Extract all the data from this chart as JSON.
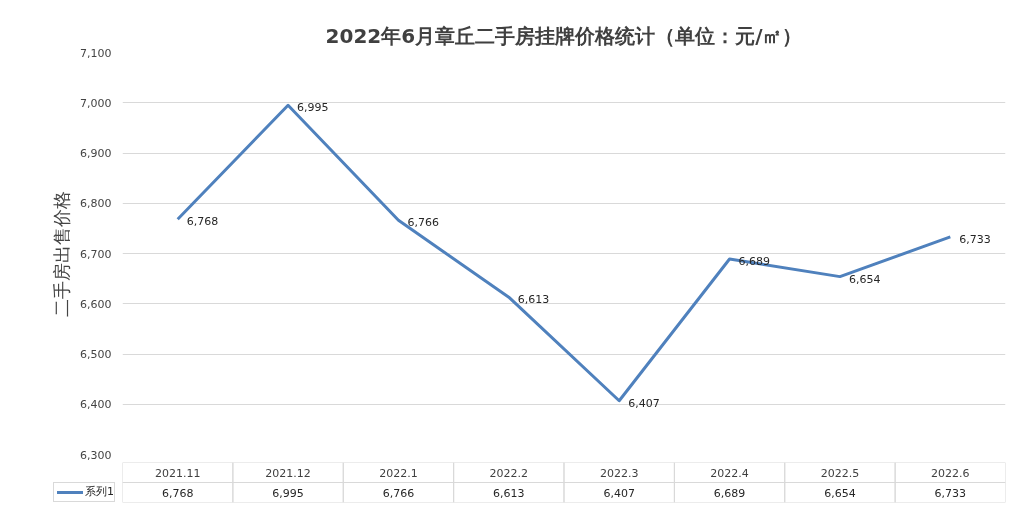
{
  "chart_data": {
    "type": "line",
    "title": "2022年6月章丘二手房挂牌价格统计（单位：元/㎡）",
    "ylabel": "二手房出售价格",
    "categories": [
      "2021.11",
      "2021.12",
      "2022.1",
      "2022.2",
      "2022.3",
      "2022.4",
      "2022.5",
      "2022.6"
    ],
    "series": [
      {
        "name": "系列1",
        "color": "#4f81bd",
        "values": [
          6768,
          6995,
          6766,
          6613,
          6407,
          6689,
          6654,
          6733
        ],
        "value_labels": [
          "6,768",
          "6,995",
          "6,766",
          "6,613",
          "6,407",
          "6,689",
          "6,654",
          "6,733"
        ]
      }
    ],
    "ylim": [
      6300,
      7100
    ],
    "yticks": [
      {
        "value": 6300,
        "label": "6,300"
      },
      {
        "value": 6400,
        "label": "6,400"
      },
      {
        "value": 6500,
        "label": "6,500"
      },
      {
        "value": 6600,
        "label": "6,600"
      },
      {
        "value": 6700,
        "label": "6,700"
      },
      {
        "value": 6800,
        "label": "6,800"
      },
      {
        "value": 6900,
        "label": "6,900"
      },
      {
        "value": 7000,
        "label": "7,000"
      },
      {
        "value": 7100,
        "label": "7,100"
      }
    ],
    "grid": "y",
    "marker": "none",
    "line_style": "solid",
    "legend": "bottom"
  }
}
